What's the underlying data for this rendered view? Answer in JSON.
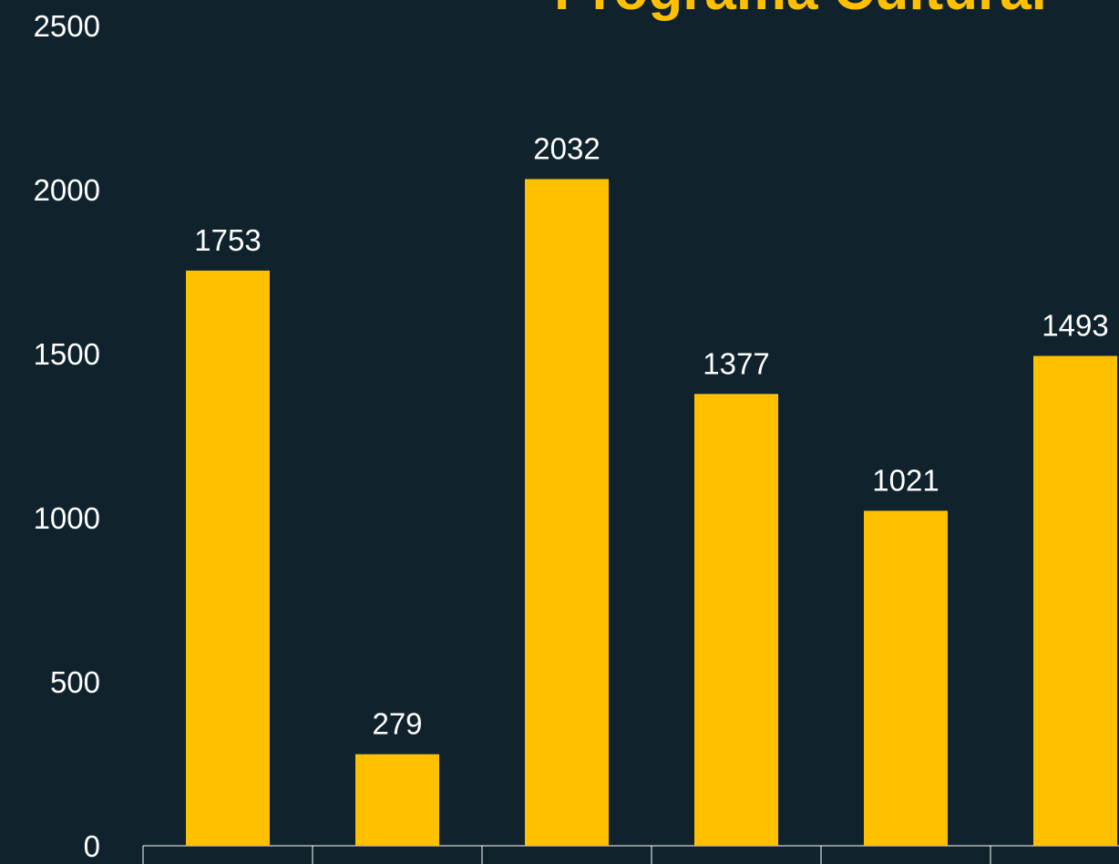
{
  "chart_data": {
    "type": "bar",
    "title": "Programa Cultural",
    "categories": [
      null,
      null,
      null,
      null,
      null,
      null
    ],
    "values": [
      1753,
      279,
      2032,
      1377,
      1021,
      1493
    ],
    "color": "#ffc000",
    "ylim": [
      0,
      2500
    ],
    "yticks": [
      0,
      500,
      1000,
      1500,
      2000,
      2500
    ],
    "grid": false
  }
}
